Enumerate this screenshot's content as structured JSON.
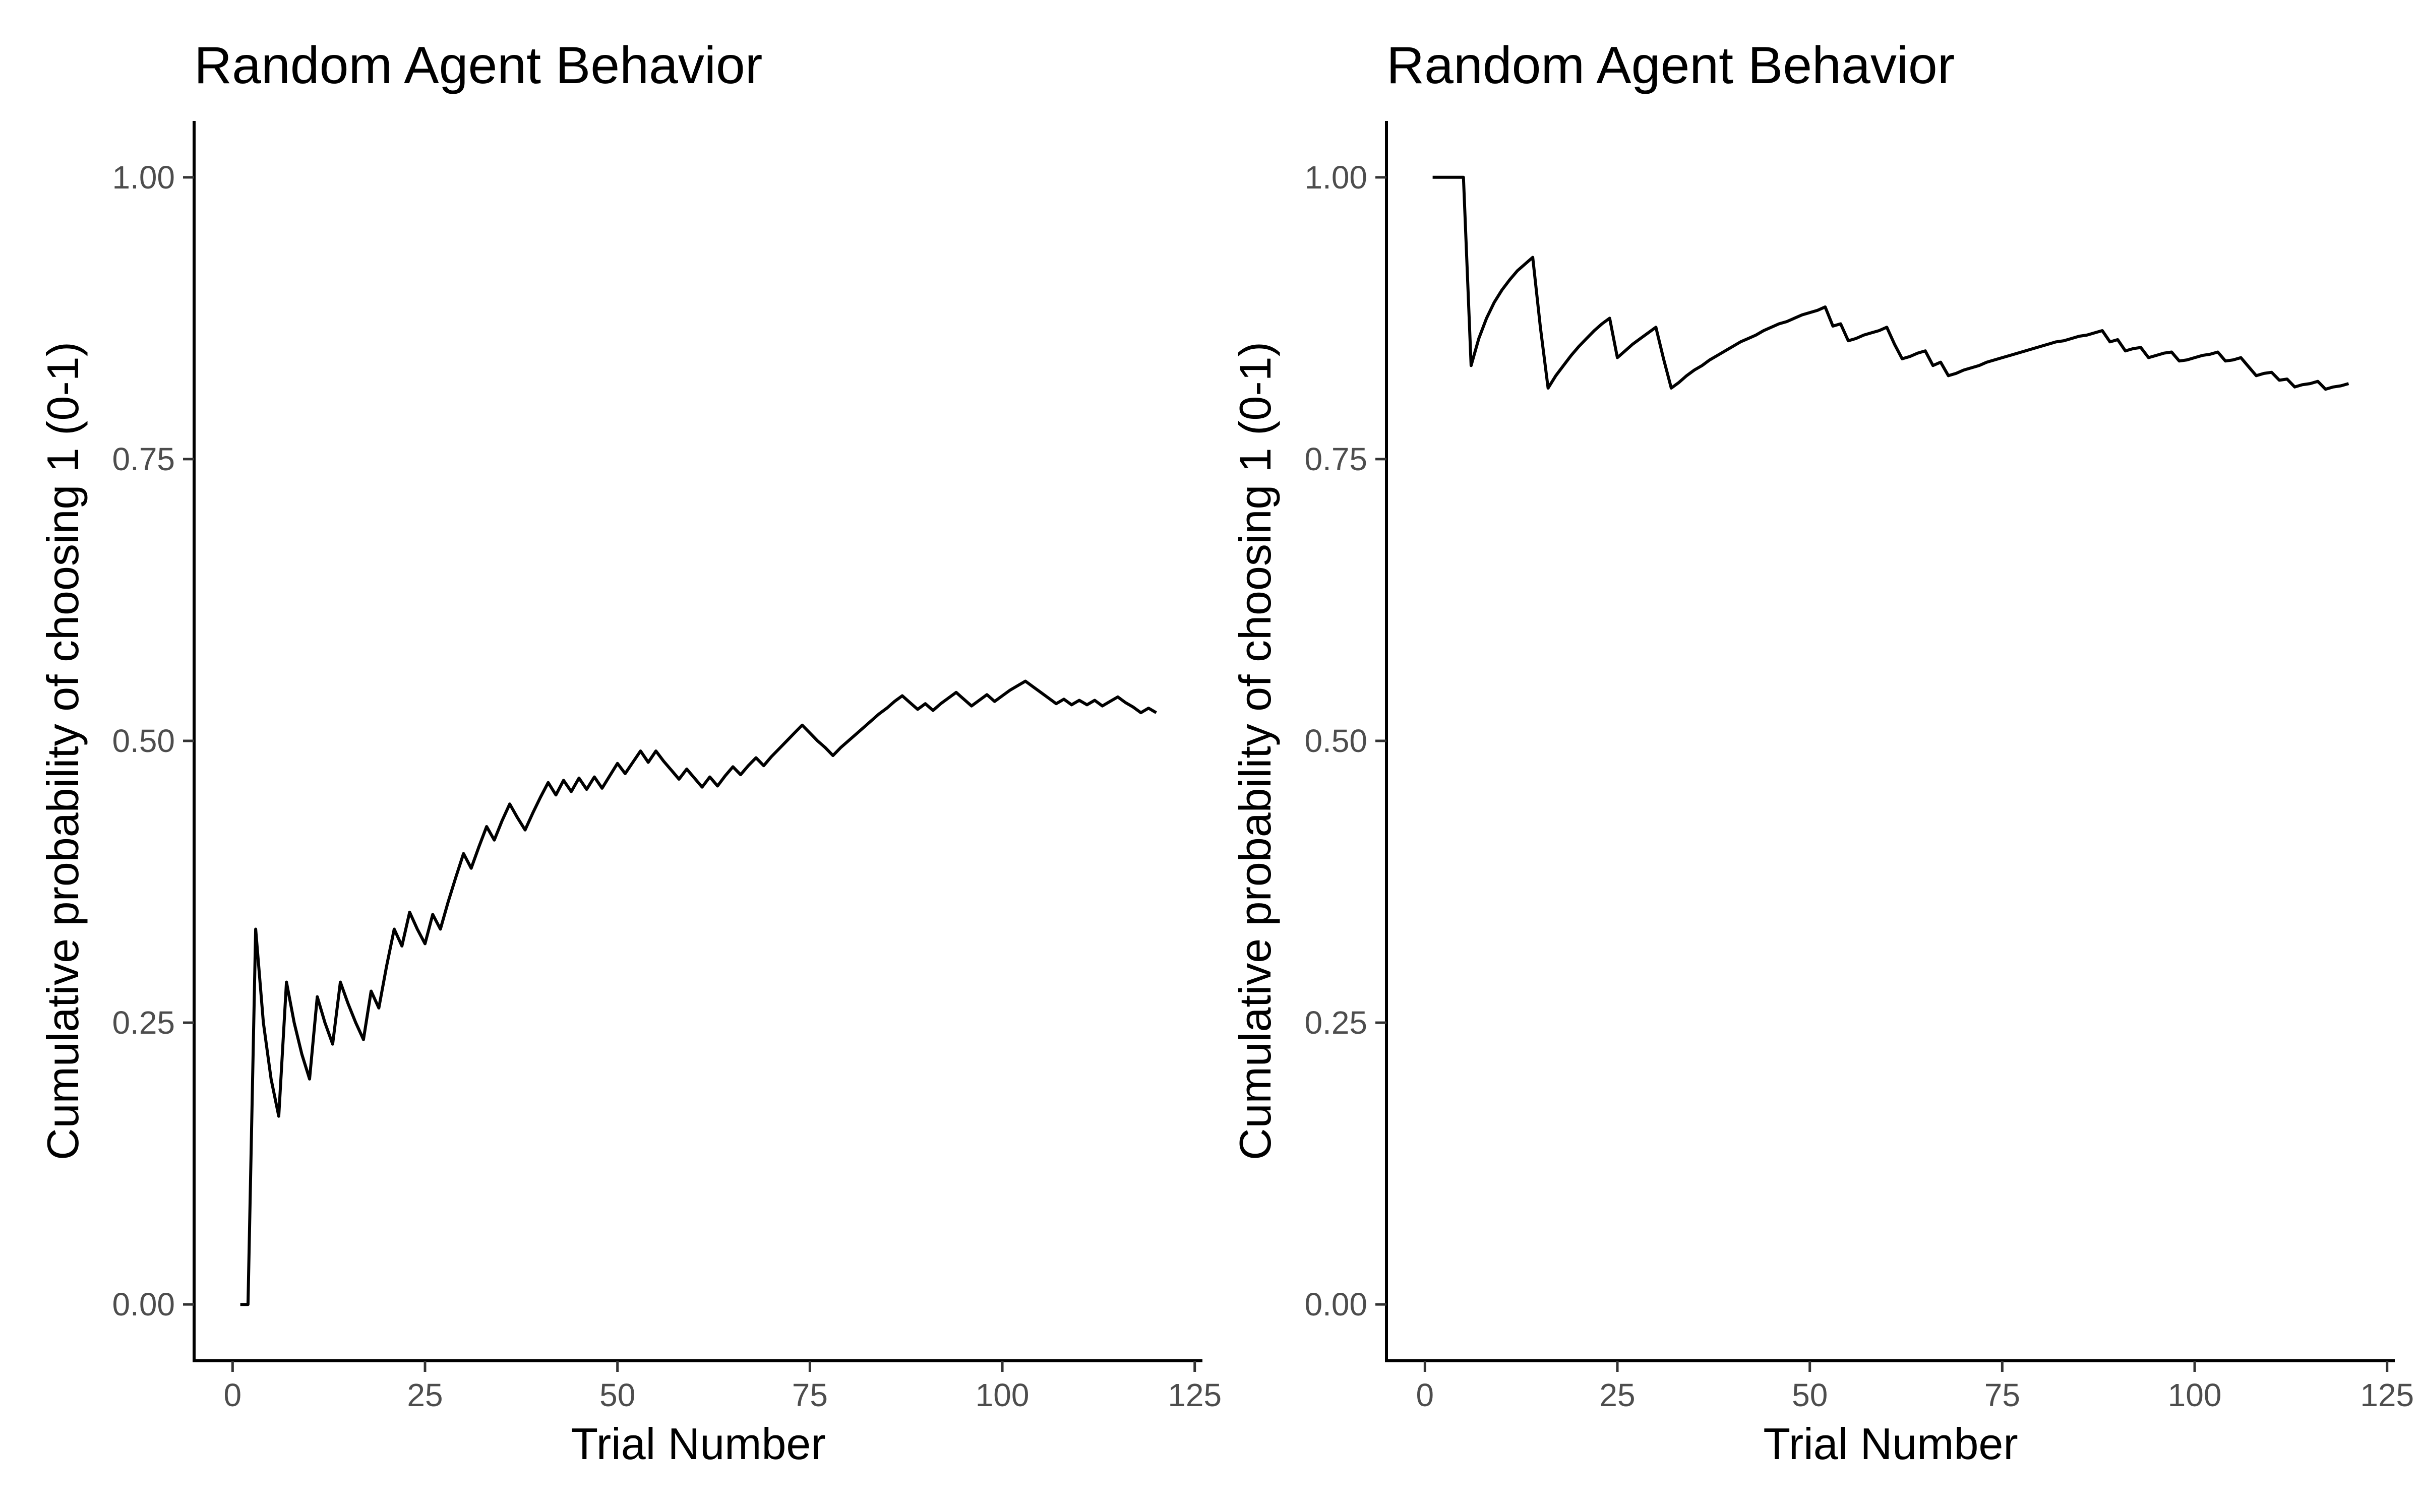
{
  "chart_data": [
    {
      "type": "line",
      "title": "Random Agent Behavior",
      "xlabel": "Trial Number",
      "ylabel": "Cumulative probability of choosing 1 (0-1)",
      "xlim": [
        -5,
        126
      ],
      "ylim": [
        -0.05,
        1.05
      ],
      "xticks": [
        0,
        25,
        50,
        75,
        100,
        125
      ],
      "yticks": [
        0.0,
        0.25,
        0.5,
        0.75,
        1.0
      ],
      "xtick_labels": [
        "0",
        "25",
        "50",
        "75",
        "100",
        "125"
      ],
      "ytick_labels": [
        "0.00",
        "0.25",
        "0.50",
        "0.75",
        "1.00"
      ],
      "grid": false,
      "legend": "none",
      "color": "#000000",
      "series": [
        {
          "x": [
            1,
            2,
            3,
            4,
            5,
            6,
            7,
            8,
            9,
            10,
            11,
            12,
            13,
            14,
            15,
            16,
            17,
            18,
            19,
            20,
            21,
            22,
            23,
            24,
            25,
            26,
            27,
            28,
            29,
            30,
            31,
            32,
            33,
            34,
            35,
            36,
            37,
            38,
            39,
            40,
            41,
            42,
            43,
            44,
            45,
            46,
            47,
            48,
            49,
            50,
            51,
            52,
            53,
            54,
            55,
            56,
            57,
            58,
            59,
            60,
            61,
            62,
            63,
            64,
            65,
            66,
            67,
            68,
            69,
            70,
            71,
            72,
            73,
            74,
            75,
            76,
            77,
            78,
            79,
            80,
            81,
            82,
            83,
            84,
            85,
            86,
            87,
            88,
            89,
            90,
            91,
            92,
            93,
            94,
            95,
            96,
            97,
            98,
            99,
            100,
            101,
            102,
            103,
            104,
            105,
            106,
            107,
            108,
            109,
            110,
            111,
            112,
            113,
            114,
            115,
            116,
            117,
            118,
            119,
            120
          ],
          "y": [
            0.0,
            0.0,
            0.333,
            0.25,
            0.2,
            0.167,
            0.286,
            0.25,
            0.222,
            0.2,
            0.273,
            0.25,
            0.231,
            0.286,
            0.267,
            0.25,
            0.235,
            0.278,
            0.263,
            0.3,
            0.333,
            0.318,
            0.348,
            0.333,
            0.32,
            0.346,
            0.333,
            0.357,
            0.379,
            0.4,
            0.387,
            0.406,
            0.424,
            0.412,
            0.429,
            0.444,
            0.432,
            0.421,
            0.436,
            0.45,
            0.463,
            0.452,
            0.465,
            0.455,
            0.467,
            0.457,
            0.468,
            0.458,
            0.469,
            0.48,
            0.471,
            0.481,
            0.491,
            0.481,
            0.491,
            0.482,
            0.474,
            0.466,
            0.475,
            0.467,
            0.459,
            0.468,
            0.46,
            0.469,
            0.477,
            0.47,
            0.478,
            0.485,
            0.478,
            0.486,
            0.493,
            0.5,
            0.507,
            0.514,
            0.507,
            0.5,
            0.494,
            0.487,
            0.494,
            0.5,
            0.506,
            0.512,
            0.518,
            0.524,
            0.529,
            0.535,
            0.54,
            0.534,
            0.528,
            0.533,
            0.527,
            0.533,
            0.538,
            0.543,
            0.537,
            0.531,
            0.536,
            0.541,
            0.535,
            0.54,
            0.545,
            0.549,
            0.553,
            0.548,
            0.543,
            0.538,
            0.533,
            0.537,
            0.532,
            0.536,
            0.532,
            0.536,
            0.531,
            0.535,
            0.539,
            0.534,
            0.53,
            0.525,
            0.529,
            0.525
          ]
        }
      ]
    },
    {
      "type": "line",
      "title": "Random Agent Behavior",
      "xlabel": "Trial Number",
      "ylabel": "Cumulative probability of choosing 1 (0-1)",
      "xlim": [
        -5,
        126
      ],
      "ylim": [
        -0.05,
        1.05
      ],
      "xticks": [
        0,
        25,
        50,
        75,
        100,
        125
      ],
      "yticks": [
        0.0,
        0.25,
        0.5,
        0.75,
        1.0
      ],
      "xtick_labels": [
        "0",
        "25",
        "50",
        "75",
        "100",
        "125"
      ],
      "ytick_labels": [
        "0.00",
        "0.25",
        "0.50",
        "0.75",
        "1.00"
      ],
      "grid": false,
      "legend": "none",
      "color": "#000000",
      "series": [
        {
          "x": [
            1,
            2,
            3,
            4,
            5,
            6,
            7,
            8,
            9,
            10,
            11,
            12,
            13,
            14,
            15,
            16,
            17,
            18,
            19,
            20,
            21,
            22,
            23,
            24,
            25,
            26,
            27,
            28,
            29,
            30,
            31,
            32,
            33,
            34,
            35,
            36,
            37,
            38,
            39,
            40,
            41,
            42,
            43,
            44,
            45,
            46,
            47,
            48,
            49,
            50,
            51,
            52,
            53,
            54,
            55,
            56,
            57,
            58,
            59,
            60,
            61,
            62,
            63,
            64,
            65,
            66,
            67,
            68,
            69,
            70,
            71,
            72,
            73,
            74,
            75,
            76,
            77,
            78,
            79,
            80,
            81,
            82,
            83,
            84,
            85,
            86,
            87,
            88,
            89,
            90,
            91,
            92,
            93,
            94,
            95,
            96,
            97,
            98,
            99,
            100,
            101,
            102,
            103,
            104,
            105,
            106,
            107,
            108,
            109,
            110,
            111,
            112,
            113,
            114,
            115,
            116,
            117,
            118,
            119,
            120
          ],
          "y": [
            1.0,
            1.0,
            1.0,
            1.0,
            1.0,
            0.833,
            0.857,
            0.875,
            0.889,
            0.9,
            0.909,
            0.917,
            0.923,
            0.929,
            0.867,
            0.813,
            0.824,
            0.833,
            0.842,
            0.85,
            0.857,
            0.864,
            0.87,
            0.875,
            0.84,
            0.846,
            0.852,
            0.857,
            0.862,
            0.867,
            0.839,
            0.813,
            0.818,
            0.824,
            0.829,
            0.833,
            0.838,
            0.842,
            0.846,
            0.85,
            0.854,
            0.857,
            0.86,
            0.864,
            0.867,
            0.87,
            0.872,
            0.875,
            0.878,
            0.88,
            0.882,
            0.885,
            0.868,
            0.87,
            0.855,
            0.857,
            0.86,
            0.862,
            0.864,
            0.867,
            0.852,
            0.839,
            0.841,
            0.844,
            0.846,
            0.833,
            0.836,
            0.824,
            0.826,
            0.829,
            0.831,
            0.833,
            0.836,
            0.838,
            0.84,
            0.842,
            0.844,
            0.846,
            0.848,
            0.85,
            0.852,
            0.854,
            0.855,
            0.857,
            0.859,
            0.86,
            0.862,
            0.864,
            0.854,
            0.856,
            0.846,
            0.848,
            0.849,
            0.84,
            0.842,
            0.844,
            0.845,
            0.837,
            0.838,
            0.84,
            0.842,
            0.843,
            0.845,
            0.837,
            0.838,
            0.84,
            0.832,
            0.824,
            0.826,
            0.827,
            0.82,
            0.821,
            0.814,
            0.816,
            0.817,
            0.819,
            0.812,
            0.814,
            0.815,
            0.817
          ]
        }
      ]
    }
  ]
}
